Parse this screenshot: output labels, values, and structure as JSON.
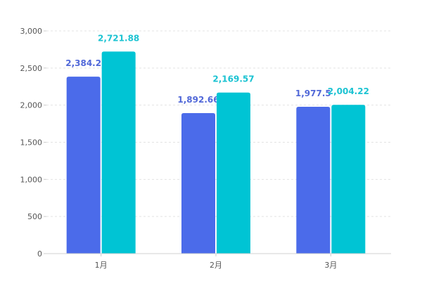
{
  "chart_data": {
    "type": "bar",
    "categories": [
      "1月",
      "2月",
      "3月"
    ],
    "series": [
      {
        "values": [
          2384.2,
          1892.66,
          1977.5
        ],
        "labels": [
          "2,384.2",
          "1,892.66",
          "1,977.5"
        ],
        "color": "#4b6bea"
      },
      {
        "values": [
          2721.88,
          2169.57,
          2004.22
        ],
        "labels": [
          "2,721.88",
          "2,169.57",
          "2,004.22"
        ],
        "color": "#00c4d4"
      }
    ],
    "yticks": [
      0,
      500,
      1000,
      1500,
      2000,
      2500,
      3000
    ],
    "ytick_labels": [
      "0",
      "500",
      "1,000",
      "1,500",
      "2,000",
      "2,500",
      "3,000"
    ],
    "ylim": [
      0,
      3000
    ],
    "grid": true
  }
}
